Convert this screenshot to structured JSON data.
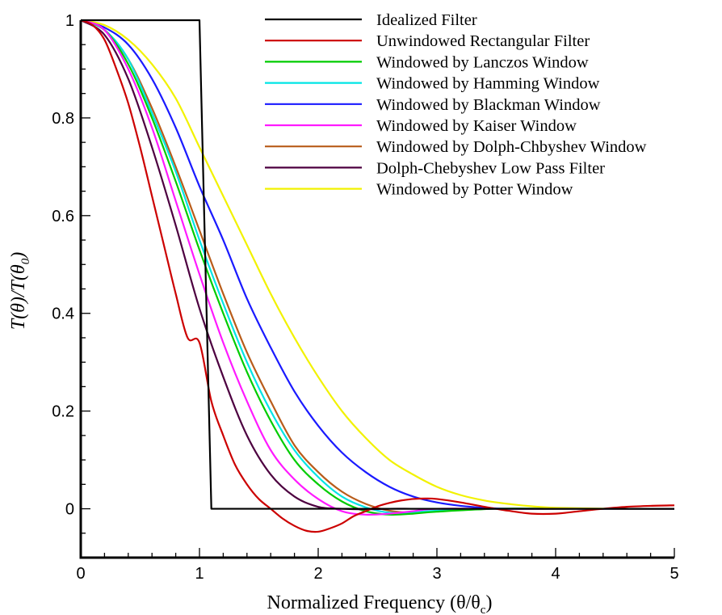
{
  "chart_data": {
    "type": "line",
    "xlabel": "Normalized Frequency (θ/θ",
    "xlabel_sub": "c",
    "xlabel_close": ")",
    "ylabel": "T(θ)/T(θ",
    "ylabel_sub": "0",
    "ylabel_close": ")",
    "xlim": [
      0,
      5
    ],
    "ylim": [
      -0.1,
      1
    ],
    "x_ticks": [
      0,
      1,
      2,
      3,
      4,
      5
    ],
    "x_tick_labels": [
      "0",
      "1",
      "2",
      "3",
      "4",
      "5"
    ],
    "y_ticks": [
      0,
      0.2,
      0.4,
      0.6,
      0.8,
      1
    ],
    "y_tick_labels": [
      "0",
      "0.2",
      "0.4",
      "0.6",
      "0.8",
      "1"
    ],
    "grid": false,
    "legend_position": "top-right",
    "series": [
      {
        "name": "Idealized Filter",
        "color": "#000000",
        "x": [
          0,
          1.0,
          1.1,
          5
        ],
        "y": [
          1,
          1,
          0,
          0
        ]
      },
      {
        "name": "Unwindowed Rectangular Filter",
        "color": "#cc0000",
        "x": [
          0,
          0.1,
          0.2,
          0.3,
          0.4,
          0.5,
          0.6,
          0.7,
          0.8,
          0.9,
          1.0,
          1.1,
          1.2,
          1.3,
          1.4,
          1.5,
          1.6,
          1.7,
          1.8,
          1.9,
          2.0,
          2.1,
          2.2,
          2.3,
          2.4,
          2.5,
          2.6,
          2.7,
          2.8,
          2.9,
          3.0,
          3.2,
          3.4,
          3.6,
          3.8,
          4.0,
          4.2,
          4.4,
          4.6,
          4.8,
          5.0
        ],
        "y": [
          1,
          0.99,
          0.96,
          0.9,
          0.83,
          0.74,
          0.64,
          0.54,
          0.44,
          0.35,
          0.34,
          0.22,
          0.15,
          0.09,
          0.05,
          0.02,
          0.0,
          -0.02,
          -0.035,
          -0.045,
          -0.047,
          -0.04,
          -0.03,
          -0.015,
          -0.005,
          0.005,
          0.012,
          0.017,
          0.02,
          0.021,
          0.02,
          0.013,
          0.004,
          -0.004,
          -0.01,
          -0.01,
          -0.005,
          0.0,
          0.004,
          0.006,
          0.007
        ]
      },
      {
        "name": "Windowed by Lanczos Window",
        "color": "#00cc00",
        "x": [
          0,
          0.2,
          0.4,
          0.6,
          0.8,
          1.0,
          1.2,
          1.4,
          1.6,
          1.8,
          2.0,
          2.2,
          2.4,
          2.6,
          2.8,
          3.0,
          3.5,
          4.0,
          4.5,
          5.0
        ],
        "y": [
          1,
          0.98,
          0.91,
          0.8,
          0.67,
          0.53,
          0.4,
          0.28,
          0.18,
          0.1,
          0.05,
          0.015,
          -0.005,
          -0.012,
          -0.01,
          -0.006,
          0.0,
          0.0,
          0.0,
          0.0
        ]
      },
      {
        "name": "Windowed by Hamming Window",
        "color": "#00e5e5",
        "x": [
          0,
          0.2,
          0.4,
          0.6,
          0.8,
          1.0,
          1.2,
          1.4,
          1.6,
          1.8,
          2.0,
          2.2,
          2.4,
          2.6,
          2.8,
          3.0,
          3.5,
          4.0,
          4.5,
          5.0
        ],
        "y": [
          1,
          0.98,
          0.92,
          0.81,
          0.69,
          0.55,
          0.42,
          0.3,
          0.2,
          0.12,
          0.065,
          0.025,
          0.003,
          -0.008,
          -0.007,
          -0.004,
          0.0,
          0.0,
          0.0,
          0.0
        ]
      },
      {
        "name": "Windowed by Blackman Window",
        "color": "#1a1aff",
        "x": [
          0,
          0.2,
          0.4,
          0.6,
          0.8,
          1.0,
          1.2,
          1.4,
          1.6,
          1.8,
          2.0,
          2.2,
          2.4,
          2.6,
          2.8,
          3.0,
          3.2,
          3.4,
          3.6,
          4.0,
          4.5,
          5.0
        ],
        "y": [
          1,
          0.985,
          0.95,
          0.88,
          0.78,
          0.66,
          0.55,
          0.43,
          0.33,
          0.24,
          0.17,
          0.115,
          0.075,
          0.045,
          0.025,
          0.013,
          0.006,
          0.002,
          0.0,
          0.0,
          0.0,
          0.0
        ]
      },
      {
        "name": "Windowed by Kaiser Window",
        "color": "#ff1aff",
        "x": [
          0,
          0.2,
          0.4,
          0.6,
          0.8,
          1.0,
          1.2,
          1.4,
          1.6,
          1.8,
          2.0,
          2.2,
          2.4,
          2.6,
          2.8,
          3.0,
          3.5,
          4.0,
          4.5,
          5.0
        ],
        "y": [
          1,
          0.98,
          0.9,
          0.78,
          0.63,
          0.48,
          0.34,
          0.22,
          0.12,
          0.06,
          0.02,
          -0.005,
          -0.012,
          -0.01,
          -0.005,
          0.0,
          0.0,
          0.0,
          0.0,
          0.0
        ]
      },
      {
        "name": "Windowed by Dolph-Chbyshev Window",
        "color": "#b85c1a",
        "x": [
          0,
          0.2,
          0.4,
          0.6,
          0.8,
          1.0,
          1.2,
          1.4,
          1.6,
          1.8,
          2.0,
          2.2,
          2.4,
          2.6,
          2.8,
          3.0,
          3.5,
          4.0,
          4.5,
          5.0
        ],
        "y": [
          1,
          0.98,
          0.92,
          0.82,
          0.7,
          0.57,
          0.44,
          0.32,
          0.22,
          0.13,
          0.075,
          0.035,
          0.01,
          -0.004,
          -0.008,
          -0.005,
          0.0,
          0.0,
          0.0,
          0.0
        ]
      },
      {
        "name": "Dolph-Chebyshev Low Pass Filter",
        "color": "#4d0040",
        "x": [
          0,
          0.2,
          0.4,
          0.6,
          0.8,
          1.0,
          1.2,
          1.4,
          1.6,
          1.8,
          2.0,
          2.2,
          2.4,
          2.6,
          2.8,
          3.0,
          3.5,
          4.0,
          4.5,
          5.0
        ],
        "y": [
          1,
          0.97,
          0.88,
          0.74,
          0.58,
          0.41,
          0.27,
          0.15,
          0.07,
          0.025,
          0.004,
          0.0,
          -0.001,
          0.0,
          0.0,
          0.0,
          0.0,
          0.0,
          0.0,
          0.0
        ]
      },
      {
        "name": "Windowed by Potter Window",
        "color": "#f2f200",
        "x": [
          0,
          0.2,
          0.4,
          0.6,
          0.8,
          1.0,
          1.2,
          1.4,
          1.6,
          1.8,
          2.0,
          2.2,
          2.4,
          2.6,
          2.8,
          3.0,
          3.2,
          3.4,
          3.6,
          3.8,
          4.0,
          4.5,
          5.0
        ],
        "y": [
          1,
          0.99,
          0.96,
          0.91,
          0.84,
          0.74,
          0.64,
          0.54,
          0.44,
          0.35,
          0.27,
          0.2,
          0.145,
          0.1,
          0.07,
          0.045,
          0.028,
          0.017,
          0.01,
          0.005,
          0.002,
          0.0,
          0.0
        ]
      }
    ]
  }
}
